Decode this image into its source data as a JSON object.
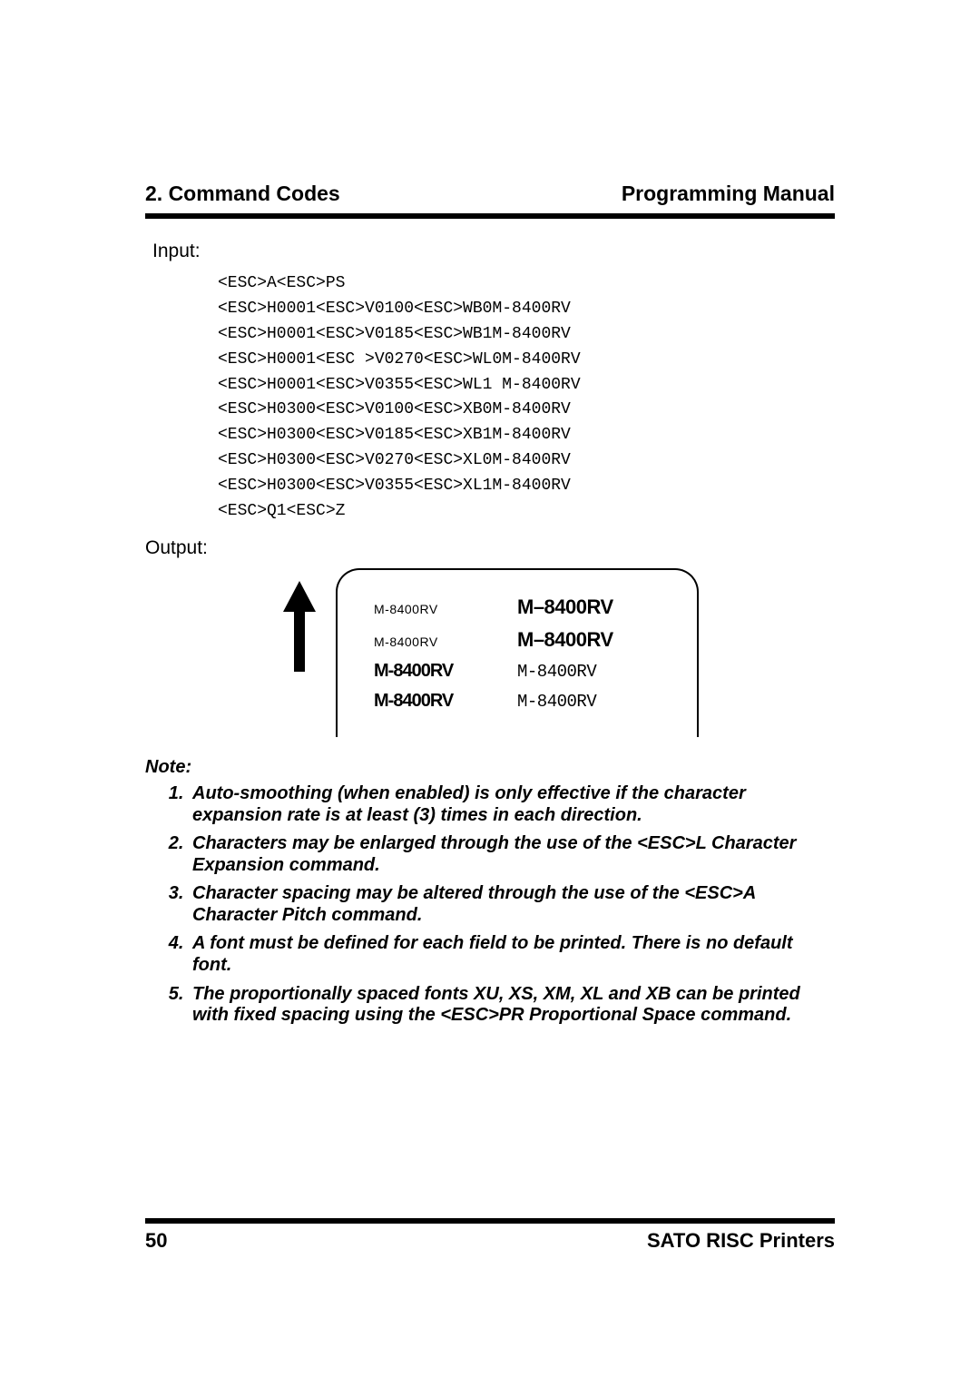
{
  "header": {
    "left": "2. Command Codes",
    "right": "Programming Manual"
  },
  "input": {
    "label": "Input:",
    "lines": [
      "<ESC>A<ESC>PS",
      "<ESC>H0001<ESC>V0100<ESC>WB0M-8400RV",
      "<ESC>H0001<ESC>V0185<ESC>WB1M-8400RV",
      "<ESC>H0001<ESC >V0270<ESC>WL0M-8400RV",
      "<ESC>H0001<ESC>V0355<ESC>WL1 M-8400RV",
      "<ESC>H0300<ESC>V0100<ESC>XB0M-8400RV",
      "<ESC>H0300<ESC>V0185<ESC>XB1M-8400RV",
      "<ESC>H0300<ESC>V0270<ESC>XL0M-8400RV",
      "<ESC>H0300<ESC>V0355<ESC>XL1M-8400RV",
      "<ESC>Q1<ESC>Z"
    ]
  },
  "output": {
    "label": "Output:",
    "rows": [
      {
        "col1": "M-8400RV",
        "col1_class": "f-small",
        "col2": "M–8400RV",
        "col2_class": "f-bold22"
      },
      {
        "col1": "M-8400RV",
        "col1_class": "f-small",
        "col2": "M–8400RV",
        "col2_class": "f-bold22"
      },
      {
        "col1": "M-8400RV",
        "col1_class": "f-bold20",
        "col2": "M-8400RV",
        "col2_class": "f-reg19"
      },
      {
        "col1": "M-8400RV",
        "col1_class": "f-bold20",
        "col2": "M-8400RV",
        "col2_class": "f-reg19"
      }
    ]
  },
  "notes": {
    "heading": "Note:",
    "items": [
      "Auto-smoothing (when enabled) is only effective if the character expansion rate is at least (3) times in each direction.",
      "Characters may be enlarged through the use of the <ESC>L Character Expansion command.",
      "Character spacing may be altered through the use of the <ESC>A Character Pitch command.",
      "A font must be defined for each field to be printed. There is no default font.",
      "The proportionally spaced fonts XU, XS, XM, XL and XB can be printed with fixed spacing using the <ESC>PR Proportional Space command."
    ]
  },
  "footer": {
    "page": "50",
    "right": "SATO RISC Printers"
  }
}
